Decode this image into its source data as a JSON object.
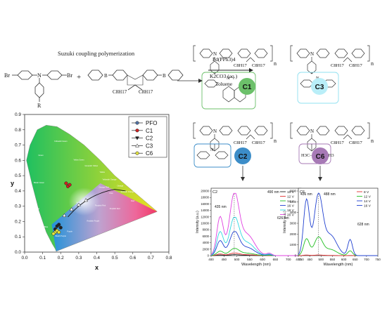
{
  "scheme": {
    "reaction_title": "Suzuki coupling polymerization",
    "monomer1": {
      "left_group": "Br",
      "right_group": "Br",
      "pendant": "R"
    },
    "monomer2": {
      "alkyl_left": "C8H17",
      "alkyl_right": "C8H17",
      "boron": "B"
    },
    "plus": "+",
    "catalyst": "Pd(PPh3)4",
    "base": "K2CO3 (aq.)",
    "solvent": "Toluene",
    "repeat_index": "n",
    "polymers": [
      {
        "label": "C1",
        "color": "#6cc06a",
        "box": "#6cc06a"
      },
      {
        "label": "C3",
        "color": "#b9eef8",
        "box": "#8fe0f0"
      },
      {
        "label": "C2",
        "color": "#3c8dc8",
        "box": "#3c8dc8"
      },
      {
        "label": "C6",
        "color": "#a77ab6",
        "box": "#a77ab6"
      }
    ],
    "c6_group": "H3C—CH—CH3"
  },
  "cie": {
    "legend": [
      "PFO",
      "C1",
      "C2",
      "C3",
      "C6"
    ],
    "xlabel": "x",
    "ylabel": "y",
    "xticks": [
      "0.0",
      "0.1",
      "0.2",
      "0.3",
      "0.4",
      "0.5",
      "0.6",
      "0.7",
      "0.8"
    ],
    "yticks": [
      "0.0",
      "0.1",
      "0.2",
      "0.3",
      "0.4",
      "0.5",
      "0.6",
      "0.7",
      "0.8",
      "0.9"
    ],
    "region_labels": [
      "Green",
      "Yellowish Green",
      "Bluish Green",
      "Yellow Green",
      "Greenish Yellow",
      "Yellow",
      "Yellowish Orange",
      "Orange",
      "Reddish Orange",
      "Red",
      "Purplish Red",
      "Purplish Pink",
      "Pink",
      "Orange Pink",
      "Blue",
      "Greenish Blue",
      "Bluish Purple",
      "Purplish Blue",
      "Purple",
      "Reddish Purple",
      "White"
    ]
  },
  "spectra": [
    {
      "panel_label": "C2",
      "ylabel": "Intensity (a.u.)",
      "xlabel": "Wavelength (nm)",
      "xticks": [
        "400",
        "450",
        "500",
        "550",
        "600",
        "650",
        "700",
        "750"
      ],
      "yticks": [
        "0",
        "2000",
        "4000",
        "6000",
        "8000",
        "10000",
        "12000",
        "14000",
        "16000",
        "18000",
        "20000"
      ],
      "annotations": [
        "435 nm",
        "490 nm",
        "626 nm"
      ],
      "legend": [
        {
          "label": "10 V",
          "color": "#222222"
        },
        {
          "label": "12 V",
          "color": "#e03030"
        },
        {
          "label": "14 V",
          "color": "#22c022"
        },
        {
          "label": "16 V",
          "color": "#2040d0"
        },
        {
          "label": "18 V",
          "color": "#30d8e0"
        },
        {
          "label": "20 V",
          "color": "#e040e0"
        }
      ]
    },
    {
      "panel_label": "C6",
      "ylabel": "Intensity (a.u.)",
      "xlabel": "Wavelength (nm)",
      "xticks": [
        "400",
        "450",
        "500",
        "550",
        "600",
        "650",
        "700",
        "750"
      ],
      "yticks": [
        "0",
        "1000",
        "2000",
        "3000",
        "4000",
        "5000",
        "6000"
      ],
      "annotations": [
        "436 nm",
        "488 nm",
        "628 nm"
      ],
      "legend": [
        {
          "label": "8 V",
          "color": "#e03030"
        },
        {
          "label": "12 V",
          "color": "#22c022"
        },
        {
          "label": "14 V",
          "color": "#2040d0"
        },
        {
          "label": "16 V",
          "color": "#2040d0"
        }
      ]
    }
  ]
}
